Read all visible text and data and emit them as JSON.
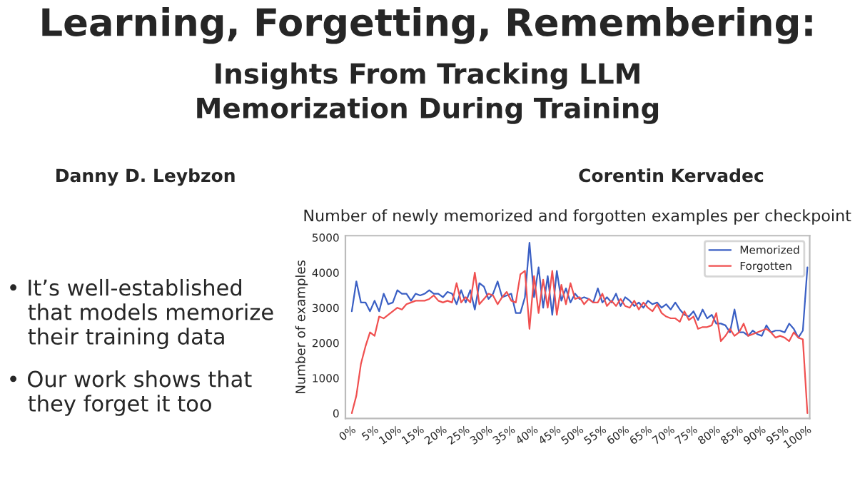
{
  "chart_data": {
    "type": "line",
    "title": "Learning, Forgetting, Remembering:",
    "subtitle": "Insights From Tracking LLM\nMemorization During Training",
    "annotations": [
      "Danny D. Leybzon",
      "Corentin Kervadec",
      "Number of newly memorized and forgotten examples per checkpoint",
      "• It’s well-established\n   that models memorize\n   their training data",
      "• Our work shows that\n   they forget it too"
    ],
    "ylabel": "Number of examples",
    "x": [
      0,
      1,
      2,
      3,
      4,
      5,
      6,
      7,
      8,
      9,
      10,
      11,
      12,
      13,
      14,
      15,
      16,
      17,
      18,
      19,
      20,
      21,
      22,
      23,
      24,
      25,
      26,
      27,
      28,
      29,
      30,
      31,
      32,
      33,
      34,
      35,
      36,
      37,
      38,
      39,
      40,
      41,
      42,
      43,
      44,
      45,
      46,
      47,
      48,
      49,
      50,
      51,
      52,
      53,
      54,
      55,
      56,
      57,
      58,
      59,
      60,
      61,
      62,
      63,
      64,
      65,
      66,
      67,
      68,
      69,
      70,
      71,
      72,
      73,
      74,
      75,
      76,
      77,
      78,
      79,
      80,
      81,
      82,
      83,
      84,
      85,
      86,
      87,
      88,
      89,
      90,
      91,
      92,
      93,
      94,
      95,
      96,
      97,
      98,
      99,
      100
    ],
    "series": [
      {
        "name": "Memorized",
        "color": "#3a5fc4",
        "values": [
          2900,
          3750,
          3150,
          3150,
          2900,
          3200,
          2900,
          3400,
          3100,
          3150,
          3500,
          3400,
          3400,
          3200,
          3400,
          3350,
          3400,
          3500,
          3400,
          3400,
          3300,
          3450,
          3400,
          3100,
          3500,
          3150,
          3500,
          2950,
          3700,
          3600,
          3250,
          3400,
          3750,
          3300,
          3350,
          3400,
          2850,
          2850,
          3300,
          4850,
          3300,
          4150,
          3000,
          3900,
          2800,
          4050,
          3200,
          3550,
          3150,
          3400,
          3250,
          3300,
          3250,
          3150,
          3550,
          3150,
          3300,
          3150,
          3400,
          3050,
          3300,
          3200,
          3050,
          3150,
          3000,
          3200,
          3100,
          3150,
          3000,
          3100,
          2950,
          3150,
          2950,
          2800,
          2750,
          2900,
          2650,
          2950,
          2700,
          2800,
          2550,
          2550,
          2500,
          2300,
          2950,
          2300,
          2300,
          2200,
          2350,
          2250,
          2200,
          2500,
          2300,
          2350,
          2350,
          2300,
          2550,
          2400,
          2150,
          2350,
          4150
        ]
      },
      {
        "name": "Forgotten",
        "color": "#f05050",
        "values": [
          0,
          500,
          1400,
          1900,
          2300,
          2200,
          2750,
          2700,
          2800,
          2900,
          3000,
          2950,
          3100,
          3150,
          3200,
          3200,
          3200,
          3250,
          3350,
          3200,
          3150,
          3200,
          3150,
          3700,
          3150,
          3300,
          3150,
          4000,
          3100,
          3250,
          3400,
          3350,
          3100,
          3300,
          3450,
          3200,
          3150,
          3950,
          4050,
          2400,
          3900,
          2850,
          3800,
          3000,
          4050,
          2800,
          3650,
          3100,
          3700,
          3250,
          3300,
          3100,
          3250,
          3150,
          3150,
          3400,
          3050,
          3200,
          3050,
          3250,
          3050,
          3000,
          3200,
          2950,
          3150,
          3000,
          2900,
          3100,
          2850,
          2750,
          2700,
          2700,
          2600,
          2900,
          2650,
          2750,
          2400,
          2450,
          2450,
          2500,
          2850,
          2050,
          2200,
          2400,
          2200,
          2300,
          2550,
          2200,
          2250,
          2300,
          2350,
          2400,
          2300,
          2150,
          2200,
          2150,
          2050,
          2300,
          2150,
          2100,
          0
        ]
      }
    ],
    "xlim": [
      -1.4,
      100.5
    ],
    "xticks": [
      {
        "value": 0,
        "label": "0%"
      },
      {
        "value": 5,
        "label": "5%"
      },
      {
        "value": 10,
        "label": "10%"
      },
      {
        "value": 15,
        "label": "15%"
      },
      {
        "value": 20,
        "label": "20%"
      },
      {
        "value": 25,
        "label": "25%"
      },
      {
        "value": 30,
        "label": "30%"
      },
      {
        "value": 35,
        "label": "35%"
      },
      {
        "value": 40,
        "label": "40%"
      },
      {
        "value": 45,
        "label": "45%"
      },
      {
        "value": 50,
        "label": "50%"
      },
      {
        "value": 55,
        "label": "55%"
      },
      {
        "value": 60,
        "label": "60%"
      },
      {
        "value": 65,
        "label": "65%"
      },
      {
        "value": 70,
        "label": "70%"
      },
      {
        "value": 75,
        "label": "75%"
      },
      {
        "value": 80,
        "label": "80%"
      },
      {
        "value": 85,
        "label": "85%"
      },
      {
        "value": 90,
        "label": "90%"
      },
      {
        "value": 95,
        "label": "95%"
      },
      {
        "value": 100,
        "label": "100%"
      }
    ],
    "ylim": [
      -150,
      5050
    ],
    "yticks": [
      0,
      1000,
      2000,
      3000,
      4000,
      5000
    ],
    "grid": false,
    "legend": "top right",
    "marker": "none",
    "line_style": "solid"
  }
}
